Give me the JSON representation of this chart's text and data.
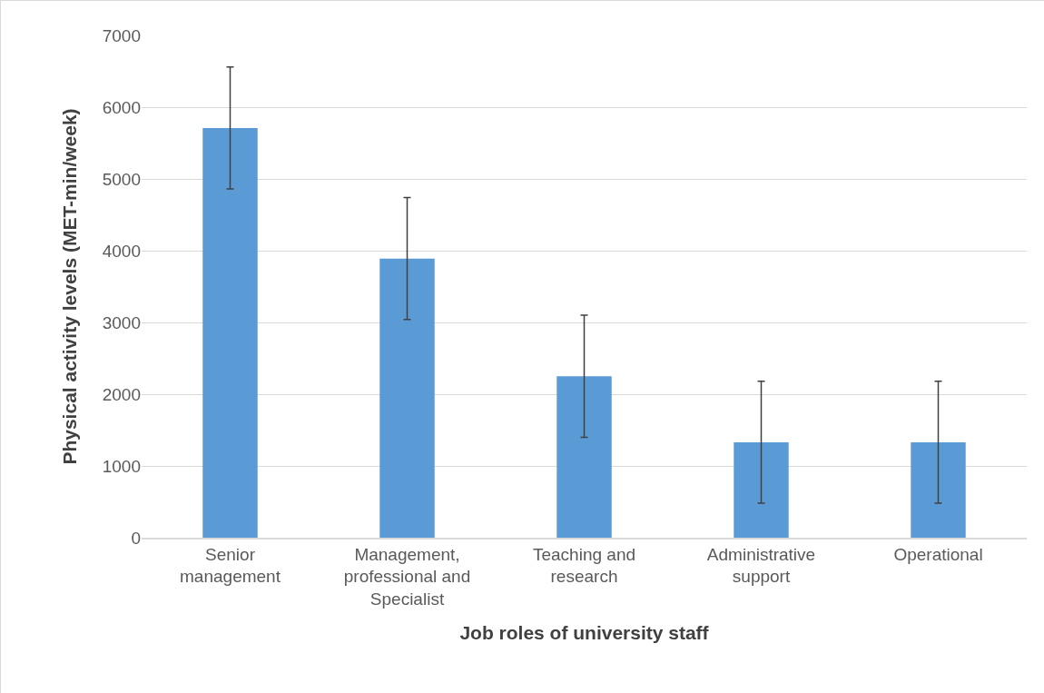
{
  "chart_data": {
    "type": "bar",
    "xlabel": "Job roles of university staff",
    "ylabel": "Physical activity levels (MET-min/week)",
    "categories": [
      "Senior management",
      "Management, professional and Specialist",
      "Teaching and research",
      "Administrative support",
      "Operational"
    ],
    "values": [
      5710,
      3890,
      2250,
      1330,
      1330
    ],
    "errors": [
      850,
      850,
      850,
      850,
      850
    ],
    "color": "#5b9bd5",
    "ylim": [
      0,
      7000
    ],
    "yticks": [
      0,
      1000,
      2000,
      3000,
      4000,
      5000,
      6000,
      7000
    ],
    "grid": "y"
  }
}
